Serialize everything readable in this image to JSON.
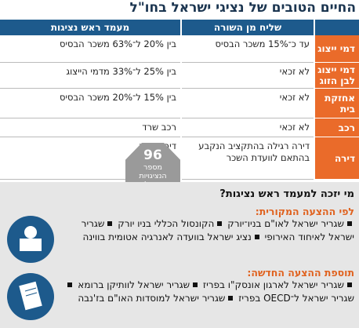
{
  "header": {
    "title": "החיים הטובים של נציגי ישראל בחו\"ל"
  },
  "table": {
    "columns": [
      "שליח מן השורה",
      "מעמד ראש נציגות"
    ],
    "rows": [
      [
        "דמי ייצוג",
        "עד כ־15% משכר הבסיס",
        "בין 20% ל־63% משכר הבסיס"
      ],
      [
        "דמי ייצוג לבן הזוג",
        "לא זכאי",
        "בין 25% ל־33% מדמי הייצוג"
      ],
      [
        "אחזקת בית",
        "לא זכאי",
        "בין 15% ל־20% משכר הבסיס"
      ],
      [
        "רכב",
        "לא זכאי",
        "רכב שרד"
      ],
      [
        "דירה",
        "דירה רגילה בהתקציב הנקבע בהתאם לוועדת השכר",
        "דירת שרד"
      ]
    ]
  },
  "badge": {
    "number": "96",
    "label": "מספר הנציגויות הישראליות בחו\"ל"
  },
  "section": {
    "title": "מי יזכה למעמד ראש נציגות?",
    "groups": [
      {
        "title": "לפי ההצעה המקורית:",
        "items": [
          "שגריר ישראל לאו\"ם בניו־יורק",
          "הקונסול הכללי בניו יורק",
          "שגריר ישראל לאיחוד האירופי",
          "נציג ישראל בוועדה לאנרגיה אטומית בווינה"
        ]
      },
      {
        "title": "תוספת ההצעה החדשה:",
        "items": [
          "שגריר ישראל לארגון אונסק\"ו בפריז",
          "שגריר ישראל לוותיקן ברומא",
          "שגריר ישראל ל־OECD בפריז",
          "שגריר ישראל למוסדות האו\"ם בז'נבה"
        ]
      }
    ]
  }
}
